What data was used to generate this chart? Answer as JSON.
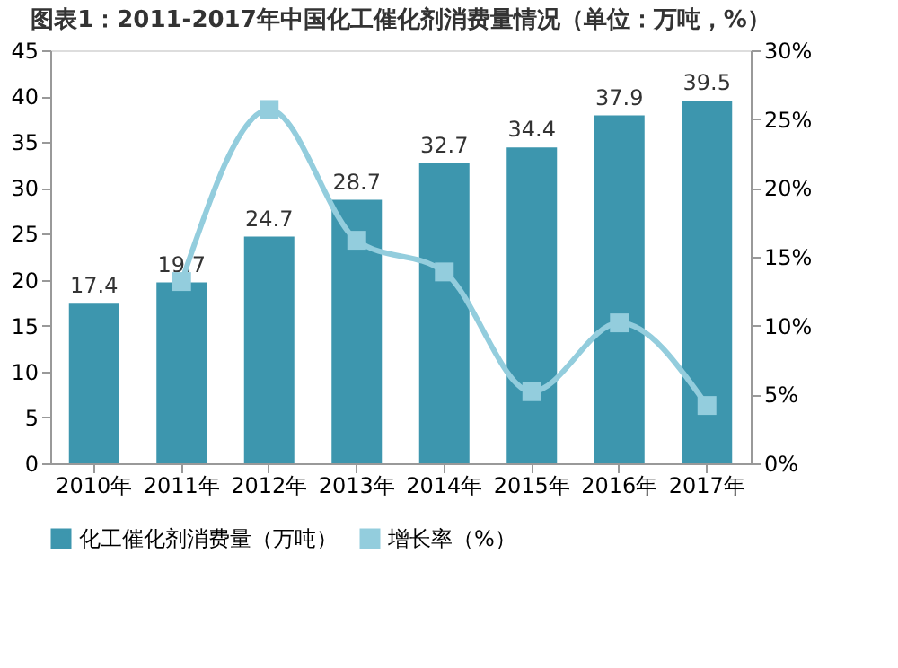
{
  "chart_data": {
    "type": "bar",
    "title": "图表1：2011-2017年中国化工催化剂消费量情况（单位：万吨，%）",
    "categories": [
      "2010年",
      "2011年",
      "2012年",
      "2013年",
      "2014年",
      "2015年",
      "2016年",
      "2017年"
    ],
    "series": [
      {
        "name": "化工催化剂消费量（万吨）",
        "color": "#3d96ae",
        "values": [
          17.4,
          19.7,
          24.7,
          28.7,
          32.7,
          34.4,
          37.9,
          39.5
        ],
        "value_labels": [
          "17.4",
          "19.7",
          "24.7",
          "28.7",
          "32.7",
          "34.4",
          "37.9",
          "39.5"
        ]
      },
      {
        "name": "增长率（%）",
        "type": "line",
        "axis": "y2",
        "color": "#93cddd",
        "values": [
          null,
          13.2,
          25.7,
          16.2,
          13.9,
          5.2,
          10.2,
          4.2
        ]
      }
    ],
    "ylim": [
      0,
      45
    ],
    "yticks": [
      0,
      5,
      10,
      15,
      20,
      25,
      30,
      35,
      40,
      45
    ],
    "y2lim": [
      0,
      30
    ],
    "y2ticks": [
      {
        "value": 0,
        "label": "0%"
      },
      {
        "value": 5,
        "label": "5%"
      },
      {
        "value": 10,
        "label": "10%"
      },
      {
        "value": 15,
        "label": "15%"
      },
      {
        "value": 20,
        "label": "20%"
      },
      {
        "value": 25,
        "label": "25%"
      },
      {
        "value": 30,
        "label": "30%"
      }
    ],
    "marker": "square",
    "legend": "bottom",
    "grid": false
  }
}
